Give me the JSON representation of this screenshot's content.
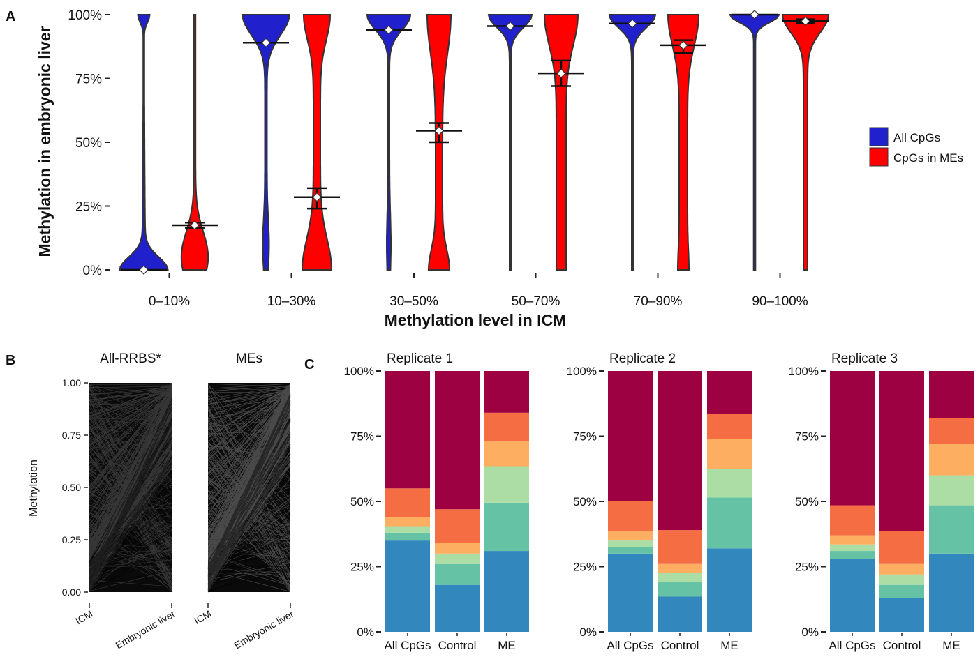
{
  "panels": {
    "A": "A",
    "B": "B",
    "C": "C"
  },
  "colors": {
    "all_cpgs": "#2020cc",
    "mes": "#ff0000",
    "outline": "#333333",
    "stack": [
      "#3288bd",
      "#66c2a5",
      "#abdda4",
      "#fdae61",
      "#f46d43",
      "#9e0142"
    ]
  },
  "chart_data": [
    {
      "type": "violin",
      "panel": "A",
      "xlabel": "Methylation level in ICM",
      "ylabel": "Methylation in embryonic liver",
      "categories": [
        "0–10%",
        "10–30%",
        "30–50%",
        "50–70%",
        "70–90%",
        "90–100%"
      ],
      "ylim": [
        0,
        100
      ],
      "yticks": [
        "0%",
        "25%",
        "50%",
        "75%",
        "100%"
      ],
      "legend": {
        "position": "right",
        "entries": [
          "All CpGs",
          "CpGs in MEs"
        ]
      },
      "series": [
        {
          "name": "All CpGs",
          "medians": [
            0,
            89,
            94,
            95.5,
            96.5,
            100
          ],
          "means": [
            0,
            89,
            94,
            95.5,
            96.5,
            100
          ],
          "ci_low": [
            0,
            89,
            94,
            95.5,
            96.5,
            100
          ],
          "ci_high": [
            0,
            89,
            94,
            95.5,
            96.5,
            100
          ]
        },
        {
          "name": "CpGs in MEs",
          "medians": [
            17.5,
            28.5,
            54.5,
            77,
            88,
            97.5
          ],
          "means": [
            17.5,
            28.5,
            54.5,
            77,
            88,
            97.5
          ],
          "ci_low": [
            16.5,
            24,
            50,
            72,
            85,
            96.8
          ],
          "ci_high": [
            18.5,
            32,
            57.5,
            82,
            90,
            98.2
          ]
        }
      ]
    },
    {
      "type": "line",
      "panel": "B",
      "ylabel": "Methylation",
      "ylim": [
        0,
        1
      ],
      "yticks": [
        "0.00",
        "0.25",
        "0.50",
        "0.75",
        "1.00"
      ],
      "facets": [
        {
          "title": "All-RRBS*",
          "x": [
            "ICM",
            "Embryonic liver"
          ]
        },
        {
          "title": "MEs",
          "x": [
            "ICM",
            "Embryonic liver"
          ]
        }
      ]
    },
    {
      "type": "bar",
      "panel": "C",
      "stacked": true,
      "ylim": [
        0,
        100
      ],
      "yticks": [
        "0%",
        "25%",
        "50%",
        "75%",
        "100%"
      ],
      "categories": [
        "All CpGs",
        "Control",
        "ME"
      ],
      "facets": [
        {
          "title": "Replicate 1",
          "stacks": [
            [
              35,
              3,
              2.5,
              3.5,
              11,
              45
            ],
            [
              18,
              8,
              4,
              4,
              13,
              53
            ],
            [
              31,
              18.5,
              14,
              9.5,
              11,
              16
            ]
          ]
        },
        {
          "title": "Replicate 2",
          "stacks": [
            [
              30,
              2.5,
              2.5,
              3.5,
              11.5,
              50
            ],
            [
              13.5,
              5.5,
              3.5,
              3.5,
              13,
              61
            ],
            [
              32,
              19.5,
              11,
              11.5,
              9.5,
              16.5
            ]
          ]
        },
        {
          "title": "Replicate 3",
          "stacks": [
            [
              28,
              3,
              2.5,
              3.5,
              11.5,
              51.5
            ],
            [
              13,
              5,
              4,
              4,
              12.5,
              61.5
            ],
            [
              30,
              18.5,
              11.5,
              12,
              10,
              18
            ]
          ]
        }
      ]
    }
  ]
}
